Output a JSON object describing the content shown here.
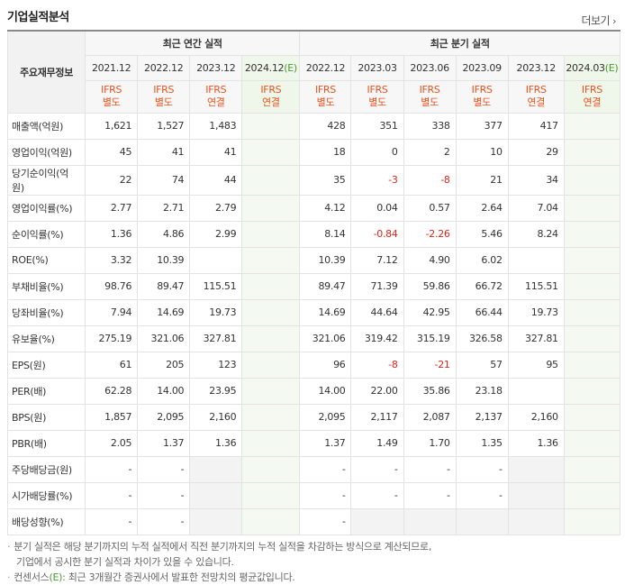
{
  "header": {
    "title": "기업실적분석",
    "more_label": "더보기"
  },
  "table": {
    "label_header": "주요재무정보",
    "annual_group": "최근 연간 실적",
    "quarter_group": "최근 분기 실적",
    "annual_periods": [
      {
        "period": "2021.12",
        "est": ""
      },
      {
        "period": "2022.12",
        "est": ""
      },
      {
        "period": "2023.12",
        "est": ""
      },
      {
        "period": "2024.12",
        "est": "(E)"
      }
    ],
    "quarter_periods": [
      {
        "period": "2022.12",
        "est": ""
      },
      {
        "period": "2023.03",
        "est": ""
      },
      {
        "period": "2023.06",
        "est": ""
      },
      {
        "period": "2023.09",
        "est": ""
      },
      {
        "period": "2023.12",
        "est": ""
      },
      {
        "period": "2024.03",
        "est": "(E)"
      }
    ],
    "annual_basis": [
      {
        "l1": "IFRS",
        "l2": "별도"
      },
      {
        "l1": "IFRS",
        "l2": "별도"
      },
      {
        "l1": "IFRS",
        "l2": "연결"
      },
      {
        "l1": "IFRS",
        "l2": "연결"
      }
    ],
    "quarter_basis": [
      {
        "l1": "IFRS",
        "l2": "별도"
      },
      {
        "l1": "IFRS",
        "l2": "별도"
      },
      {
        "l1": "IFRS",
        "l2": "별도"
      },
      {
        "l1": "IFRS",
        "l2": "별도"
      },
      {
        "l1": "IFRS",
        "l2": "연결"
      },
      {
        "l1": "IFRS",
        "l2": "연결"
      }
    ],
    "rows": [
      {
        "label": "매출액(억원)",
        "values": [
          "1,621",
          "1,527",
          "1,483",
          "",
          "428",
          "351",
          "338",
          "377",
          "417",
          ""
        ]
      },
      {
        "label": "영업이익(억원)",
        "values": [
          "45",
          "41",
          "41",
          "",
          "18",
          "0",
          "2",
          "10",
          "29",
          ""
        ]
      },
      {
        "label": "당기순이익(억원)",
        "values": [
          "22",
          "74",
          "44",
          "",
          "35",
          "-3",
          "-8",
          "21",
          "34",
          ""
        ]
      },
      {
        "label": "영업이익률(%)",
        "values": [
          "2.77",
          "2.71",
          "2.79",
          "",
          "4.12",
          "0.04",
          "0.57",
          "2.64",
          "7.04",
          ""
        ]
      },
      {
        "label": "순이익률(%)",
        "values": [
          "1.36",
          "4.86",
          "2.99",
          "",
          "8.14",
          "-0.84",
          "-2.26",
          "5.46",
          "8.24",
          ""
        ]
      },
      {
        "label": "ROE(%)",
        "values": [
          "3.32",
          "10.39",
          "",
          "",
          "10.39",
          "7.12",
          "4.90",
          "6.02",
          "",
          ""
        ]
      },
      {
        "label": "부채비율(%)",
        "values": [
          "98.76",
          "89.47",
          "115.51",
          "",
          "89.47",
          "71.39",
          "59.86",
          "66.72",
          "115.51",
          ""
        ]
      },
      {
        "label": "당좌비율(%)",
        "values": [
          "7.94",
          "14.69",
          "19.73",
          "",
          "14.69",
          "44.64",
          "42.95",
          "66.44",
          "19.73",
          ""
        ]
      },
      {
        "label": "유보율(%)",
        "values": [
          "275.19",
          "321.06",
          "327.81",
          "",
          "321.06",
          "319.42",
          "315.19",
          "326.58",
          "327.81",
          ""
        ]
      },
      {
        "label": "EPS(원)",
        "values": [
          "61",
          "205",
          "123",
          "",
          "96",
          "-8",
          "-21",
          "57",
          "95",
          ""
        ]
      },
      {
        "label": "PER(배)",
        "values": [
          "62.28",
          "14.00",
          "23.95",
          "",
          "14.00",
          "22.00",
          "35.86",
          "23.18",
          "",
          ""
        ]
      },
      {
        "label": "BPS(원)",
        "values": [
          "1,857",
          "2,095",
          "2,160",
          "",
          "2,095",
          "2,117",
          "2,087",
          "2,137",
          "2,160",
          ""
        ]
      },
      {
        "label": "PBR(배)",
        "values": [
          "2.05",
          "1.37",
          "1.36",
          "",
          "1.37",
          "1.49",
          "1.70",
          "1.35",
          "1.36",
          ""
        ]
      },
      {
        "label": "주당배당금(원)",
        "values": [
          "-",
          "-",
          "",
          "",
          "-",
          "-",
          "-",
          "-",
          "",
          ""
        ]
      },
      {
        "label": "시가배당률(%)",
        "values": [
          "-",
          "-",
          "",
          "",
          "-",
          "-",
          "-",
          "-",
          "",
          ""
        ]
      },
      {
        "label": "배당성향(%)",
        "values": [
          "-",
          "-",
          "",
          "",
          "-",
          "",
          "",
          "",
          "",
          ""
        ]
      }
    ]
  },
  "notes": {
    "line1": "분기 실적은 해당 분기까지의 누적 실적에서 직전 분기까지의 누적 실적을 차감하는 방식으로 계산되므로,",
    "line2": "기업에서 공시한 분기 실적과 차이가 있을 수 있습니다.",
    "line3_pre": "컨센서스",
    "line3_em": "(E)",
    "line3_post": ": 최근 3개월간 증권사에서 발표한 전망치의 평균값입니다."
  },
  "colors": {
    "ifrs": "#e8531e",
    "negative": "#e3251a",
    "estimate_bg": "#eef7ea",
    "estimate_mark": "#4a9a2f"
  }
}
